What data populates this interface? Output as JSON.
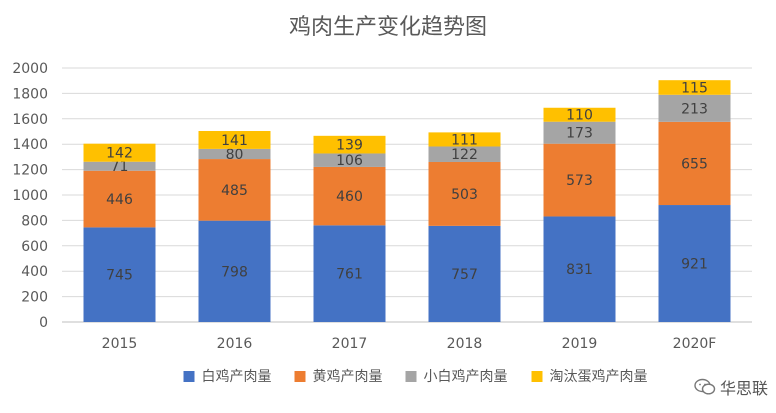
{
  "chart_data": {
    "type": "bar",
    "stacked": true,
    "title": "鸡肉生产变化趋势图",
    "categories": [
      "2015",
      "2016",
      "2017",
      "2018",
      "2019",
      "2020F"
    ],
    "series": [
      {
        "name": "白鸡产肉量",
        "color": "#4472C4",
        "values": [
          745,
          798,
          761,
          757,
          831,
          921
        ]
      },
      {
        "name": "黄鸡产肉量",
        "color": "#ED7D31",
        "values": [
          446,
          485,
          460,
          503,
          573,
          655
        ]
      },
      {
        "name": "小白鸡产肉量",
        "color": "#A5A5A5",
        "values": [
          71,
          80,
          106,
          122,
          173,
          213
        ]
      },
      {
        "name": "淘汰蛋鸡产肉量",
        "color": "#FFC000",
        "values": [
          142,
          141,
          139,
          111,
          110,
          115
        ]
      }
    ],
    "ylim": [
      0,
      2000
    ],
    "yticks": [
      0,
      200,
      400,
      600,
      800,
      1000,
      1200,
      1400,
      1600,
      1800,
      2000
    ],
    "grid": true,
    "legend_position": "bottom"
  },
  "watermark": {
    "text": "华思联",
    "icon": "wechat-icon"
  }
}
